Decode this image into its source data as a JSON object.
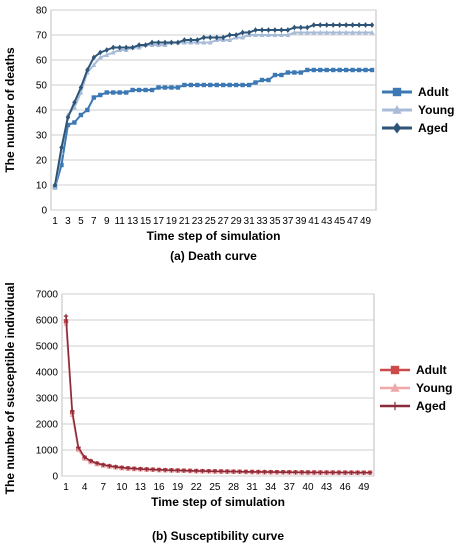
{
  "chart_data": [
    {
      "type": "line",
      "caption": "(a) Death curve",
      "xlabel": "Time step of simulation",
      "ylabel": "The number of deaths",
      "ylim": [
        0,
        80
      ],
      "yticks": [
        0,
        10,
        20,
        30,
        40,
        50,
        60,
        70,
        80
      ],
      "xticks": [
        "1",
        "3",
        "5",
        "7",
        "9",
        "11",
        "13",
        "15",
        "17",
        "19",
        "21",
        "23",
        "25",
        "27",
        "29",
        "31",
        "33",
        "35",
        "37",
        "39",
        "41",
        "43",
        "45",
        "47",
        "49"
      ],
      "x": [
        1,
        2,
        3,
        4,
        5,
        6,
        7,
        8,
        9,
        10,
        11,
        12,
        13,
        14,
        15,
        16,
        17,
        18,
        19,
        20,
        21,
        22,
        23,
        24,
        25,
        26,
        27,
        28,
        29,
        30,
        31,
        32,
        33,
        34,
        35,
        36,
        37,
        38,
        39,
        40,
        41,
        42,
        43,
        44,
        45,
        46,
        47,
        48,
        49,
        50
      ],
      "grid": true,
      "legend_position": "right",
      "series": [
        {
          "name": "Adult",
          "color": "#3c78b4",
          "marker": "square",
          "values": [
            9,
            18,
            34,
            35,
            38,
            40,
            45,
            46,
            47,
            47,
            47,
            47,
            48,
            48,
            48,
            48,
            49,
            49,
            49,
            49,
            50,
            50,
            50,
            50,
            50,
            50,
            50,
            50,
            50,
            50,
            50,
            51,
            52,
            52,
            54,
            54,
            55,
            55,
            55,
            56,
            56,
            56,
            56,
            56,
            56,
            56,
            56,
            56,
            56,
            56
          ]
        },
        {
          "name": "Young",
          "color": "#a8bcd8",
          "marker": "triangle",
          "values": [
            9,
            23,
            38,
            41,
            47,
            55,
            58,
            61,
            62,
            63,
            64,
            64,
            65,
            65,
            66,
            66,
            66,
            66,
            67,
            67,
            67,
            67,
            67,
            67,
            67,
            68,
            68,
            68,
            69,
            69,
            70,
            70,
            70,
            70,
            70,
            70,
            70,
            71,
            71,
            71,
            71,
            71,
            71,
            71,
            71,
            71,
            71,
            71,
            71,
            71
          ]
        },
        {
          "name": "Aged",
          "color": "#2e5578",
          "marker": "diamond",
          "values": [
            10,
            25,
            37,
            43,
            49,
            56,
            61,
            63,
            64,
            65,
            65,
            65,
            65,
            66,
            66,
            67,
            67,
            67,
            67,
            67,
            68,
            68,
            68,
            69,
            69,
            69,
            69,
            70,
            70,
            71,
            71,
            72,
            72,
            72,
            72,
            72,
            72,
            73,
            73,
            73,
            74,
            74,
            74,
            74,
            74,
            74,
            74,
            74,
            74,
            74
          ]
        }
      ]
    },
    {
      "type": "line",
      "caption": "(b) Susceptibility curve",
      "xlabel": "Time step of simulation",
      "ylabel": "The number of susceptible  individuals",
      "ylim": [
        0,
        7000
      ],
      "yticks": [
        0,
        1000,
        2000,
        3000,
        4000,
        5000,
        6000,
        7000
      ],
      "xticks": [
        "1",
        "4",
        "7",
        "10",
        "13",
        "16",
        "19",
        "22",
        "25",
        "28",
        "31",
        "34",
        "37",
        "40",
        "43",
        "46",
        "49"
      ],
      "x": [
        1,
        2,
        3,
        4,
        5,
        6,
        7,
        8,
        9,
        10,
        11,
        12,
        13,
        14,
        15,
        16,
        17,
        18,
        19,
        20,
        21,
        22,
        23,
        24,
        25,
        26,
        27,
        28,
        29,
        30,
        31,
        32,
        33,
        34,
        35,
        36,
        37,
        38,
        39,
        40,
        41,
        42,
        43,
        44,
        45,
        46,
        47,
        48,
        49,
        50
      ],
      "grid": true,
      "legend_position": "right",
      "series": [
        {
          "name": "Adult",
          "color": "#cc4a4a",
          "marker": "square",
          "values": [
            5950,
            2450,
            1050,
            700,
            560,
            470,
            410,
            370,
            340,
            310,
            290,
            275,
            260,
            250,
            240,
            230,
            222,
            215,
            208,
            202,
            196,
            190,
            185,
            180,
            176,
            172,
            168,
            164,
            160,
            157,
            154,
            151,
            148,
            146,
            144,
            142,
            140,
            138,
            136,
            134,
            132,
            131,
            130,
            129,
            128,
            127,
            126,
            125,
            124,
            123
          ]
        },
        {
          "name": "Young",
          "color": "#efa8a8",
          "marker": "triangle",
          "values": [
            5850,
            2350,
            1000,
            660,
            530,
            445,
            390,
            350,
            320,
            295,
            275,
            260,
            248,
            238,
            228,
            220,
            212,
            205,
            198,
            192,
            187,
            182,
            177,
            172,
            168,
            164,
            160,
            157,
            154,
            151,
            148,
            145,
            143,
            141,
            139,
            137,
            135,
            133,
            131,
            130,
            129,
            128,
            127,
            126,
            125,
            124,
            123,
            122,
            121,
            120
          ]
        },
        {
          "name": "Aged",
          "color": "#8a2a3a",
          "marker": "cross",
          "values": [
            6150,
            2500,
            1100,
            720,
            580,
            490,
            430,
            385,
            350,
            322,
            300,
            284,
            270,
            258,
            247,
            237,
            229,
            221,
            214,
            207,
            201,
            195,
            190,
            185,
            181,
            177,
            173,
            169,
            165,
            162,
            159,
            156,
            153,
            151,
            149,
            147,
            145,
            143,
            141,
            139,
            137,
            136,
            135,
            134,
            133,
            132,
            131,
            130,
            129,
            128
          ]
        }
      ]
    }
  ]
}
